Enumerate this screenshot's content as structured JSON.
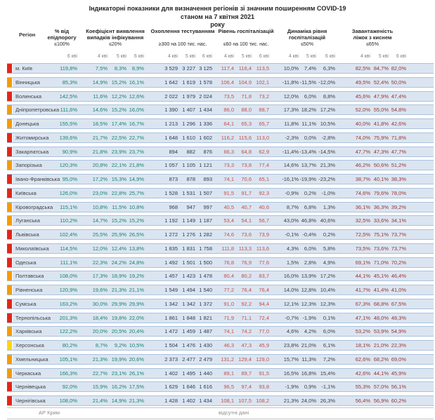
{
  "title": {
    "line1": "Індикаторні показники для визначення регіонів зі значним поширенням COVID-19",
    "line2": "станом на 7 квітня 2021",
    "line3": "року"
  },
  "columns": {
    "region_label": "Регіон",
    "groups": [
      {
        "id": "epid",
        "title_lines": [
          "% від",
          "епідпорогу"
        ],
        "limit": "≤100%"
      },
      {
        "id": "detect",
        "title_lines": [
          "Коефіцієнт виявлення",
          "випадків інфікування"
        ],
        "limit": "≤20%"
      },
      {
        "id": "testing",
        "title_lines": [
          "Охоплення тестуванням"
        ],
        "limit": "≥300 на 100 тис. нас."
      },
      {
        "id": "hosp",
        "title_lines": [
          "Рівень госпіталізацій"
        ],
        "limit": "≤60 на 100 тис. нас."
      },
      {
        "id": "dyn",
        "title_lines": [
          "Динаміка рівня",
          "госпіталізацій"
        ],
        "limit": "≤50%"
      },
      {
        "id": "beds",
        "title_lines": [
          "Завантаженість",
          "ліжок з киснем"
        ],
        "limit": "≤65%"
      }
    ]
  },
  "date_row": [
    "",
    "",
    "6 кві",
    "4 кві",
    "5 кві",
    "6 кві",
    "4 кві",
    "5 кві",
    "6 кві",
    "4 кві",
    "5 кві",
    "6 кві",
    "4 кві",
    "5 кві",
    "6 кві",
    "4 кві",
    "5 кві",
    "6 кві"
  ],
  "colors": {
    "marker_red": "#e3261a",
    "marker_orange": "#f59b00",
    "marker_yellow": "#ffd60a",
    "band_bg": "#dbe5f1",
    "band_border": "#aac2dc",
    "value_teal": "#15836c",
    "value_testing": "#2e3d52",
    "value_hosp_red": "#c0504d",
    "value_dark": "#3d3d3d",
    "value_beds_maroon": "#943634"
  },
  "rows": [
    {
      "name": "м. Київ",
      "marker": "red",
      "epid": "119,8%",
      "detect": [
        "7,5%",
        "8,3%",
        "8,9%"
      ],
      "testing": [
        "3 529",
        "3 227",
        "3 125"
      ],
      "hosp": [
        "117,4",
        "116,4",
        "113,5"
      ],
      "dyn": [
        "10,0%",
        "7,4%",
        "6,3%"
      ],
      "beds": [
        "82,5%",
        "84,7%",
        "82,0%"
      ]
    },
    {
      "name": "Вінницька",
      "marker": "orange",
      "epid": "85,3%",
      "detect": [
        "14,9%",
        "15,2%",
        "16,1%"
      ],
      "testing": [
        "1 642",
        "1 619",
        "1 578"
      ],
      "hosp": [
        "106,4",
        "104,9",
        "102,1"
      ],
      "dyn": [
        "-11,8%",
        "-11,5%",
        "-12,0%"
      ],
      "beds": [
        "49,5%",
        "52,4%",
        "50,0%"
      ]
    },
    {
      "name": "Волинська",
      "marker": "red",
      "epid": "142,5%",
      "detect": [
        "11,6%",
        "12,2%",
        "12,6%"
      ],
      "testing": [
        "2 022",
        "1 979",
        "2 024"
      ],
      "hosp": [
        "73,5",
        "71,8",
        "73,2"
      ],
      "dyn": [
        "12,0%",
        "6,0%",
        "8,8%"
      ],
      "beds": [
        "45,6%",
        "47,9%",
        "47,4%"
      ]
    },
    {
      "name": "Дніпропетровська",
      "marker": "orange",
      "epid": "111,6%",
      "detect": [
        "14,6%",
        "15,2%",
        "16,0%"
      ],
      "testing": [
        "1 390",
        "1 407",
        "1 434"
      ],
      "hosp": [
        "86,0",
        "88,0",
        "88,7"
      ],
      "dyn": [
        "17,3%",
        "18,2%",
        "17,2%"
      ],
      "beds": [
        "52,0%",
        "55,0%",
        "54,8%"
      ]
    },
    {
      "name": "Донецька",
      "marker": "orange",
      "epid": "155,5%",
      "detect": [
        "18,5%",
        "17,4%",
        "16,7%"
      ],
      "testing": [
        "1 213",
        "1 296",
        "1 336"
      ],
      "hosp": [
        "64,1",
        "65,3",
        "65,7"
      ],
      "dyn": [
        "11,8%",
        "11,1%",
        "10,5%"
      ],
      "beds": [
        "40,0%",
        "41,8%",
        "42,6%"
      ]
    },
    {
      "name": "Житомирська",
      "marker": "red",
      "epid": "139,6%",
      "detect": [
        "21,7%",
        "22,5%",
        "22,7%"
      ],
      "testing": [
        "1 648",
        "1 610",
        "1 602"
      ],
      "hosp": [
        "116,2",
        "115,6",
        "113,0"
      ],
      "dyn": [
        "-2,3%",
        "0,0%",
        "-2,8%"
      ],
      "beds": [
        "74,0%",
        "75,9%",
        "71,8%"
      ]
    },
    {
      "name": "Закарпатська",
      "marker": "red",
      "epid": "90,9%",
      "detect": [
        "21,8%",
        "23,9%",
        "23,7%"
      ],
      "testing": [
        "894",
        "882",
        "876"
      ],
      "hosp": [
        "66,3",
        "64,8",
        "62,9"
      ],
      "dyn": [
        "-11,4%",
        "-13,4%",
        "-14,5%"
      ],
      "beds": [
        "47,7%",
        "47,3%",
        "47,7%"
      ]
    },
    {
      "name": "Запорізька",
      "marker": "orange",
      "epid": "120,3%",
      "detect": [
        "20,8%",
        "22,1%",
        "21,8%"
      ],
      "testing": [
        "1 057",
        "1 105",
        "1 121"
      ],
      "hosp": [
        "73,3",
        "73,8",
        "77,4"
      ],
      "dyn": [
        "14,6%",
        "13,7%",
        "21,3%"
      ],
      "beds": [
        "46,2%",
        "50,6%",
        "51,2%"
      ]
    },
    {
      "name": "Івано-Франківська",
      "marker": "red",
      "epid": "95,0%",
      "detect": [
        "17,2%",
        "15,3%",
        "14,9%"
      ],
      "testing": [
        "873",
        "878",
        "893"
      ],
      "hosp": [
        "74,1",
        "70,6",
        "65,1"
      ],
      "dyn": [
        "-16,1%",
        "-19,9%",
        "-23,2%"
      ],
      "beds": [
        "38,7%",
        "40,1%",
        "38,3%"
      ]
    },
    {
      "name": "Київська",
      "marker": "red",
      "epid": "126,0%",
      "detect": [
        "23,0%",
        "22,8%",
        "25,7%"
      ],
      "testing": [
        "1 528",
        "1 531",
        "1 507"
      ],
      "hosp": [
        "91,5",
        "91,7",
        "92,3"
      ],
      "dyn": [
        "-0,9%",
        "0,2%",
        "-1,0%"
      ],
      "beds": [
        "74,6%",
        "79,6%",
        "78,0%"
      ]
    },
    {
      "name": "Кіровоградська",
      "marker": "orange",
      "epid": "115,1%",
      "detect": [
        "10,8%",
        "11,5%",
        "10,8%"
      ],
      "testing": [
        "968",
        "947",
        "997"
      ],
      "hosp": [
        "40,5",
        "40,7",
        "40,6"
      ],
      "dyn": [
        "8,7%",
        "6,8%",
        "1,3%"
      ],
      "beds": [
        "36,1%",
        "36,3%",
        "39,2%"
      ]
    },
    {
      "name": "Луганська",
      "marker": "orange",
      "epid": "110,2%",
      "detect": [
        "14,7%",
        "15,2%",
        "15,2%"
      ],
      "testing": [
        "1 192",
        "1 149",
        "1 187"
      ],
      "hosp": [
        "53,4",
        "54,1",
        "56,7"
      ],
      "dyn": [
        "43,0%",
        "46,8%",
        "40,6%"
      ],
      "beds": [
        "32,5%",
        "33,6%",
        "34,1%"
      ]
    },
    {
      "name": "Львівська",
      "marker": "red",
      "epid": "102,4%",
      "detect": [
        "25,5%",
        "25,9%",
        "26,5%"
      ],
      "testing": [
        "1 272",
        "1 276",
        "1 282"
      ],
      "hosp": [
        "74,6",
        "73,6",
        "73,9"
      ],
      "dyn": [
        "-0,1%",
        "-0,4%",
        "0,2%"
      ],
      "beds": [
        "72,5%",
        "75,1%",
        "73,7%"
      ]
    },
    {
      "name": "Миколаївська",
      "marker": "red",
      "epid": "114,5%",
      "detect": [
        "12,0%",
        "12,4%",
        "13,8%"
      ],
      "testing": [
        "1 835",
        "1 831",
        "1 758"
      ],
      "hosp": [
        "111,8",
        "113,3",
        "113,6"
      ],
      "dyn": [
        "4,3%",
        "6,0%",
        "5,8%"
      ],
      "beds": [
        "73,5%",
        "73,6%",
        "73,7%"
      ]
    },
    {
      "name": "Одеська",
      "marker": "red",
      "epid": "111,1%",
      "detect": [
        "22,3%",
        "24,2%",
        "24,8%"
      ],
      "testing": [
        "1 492",
        "1 501",
        "1 500"
      ],
      "hosp": [
        "76,8",
        "76,9",
        "77,6"
      ],
      "dyn": [
        "1,5%",
        "2,8%",
        "4,9%"
      ],
      "beds": [
        "69,1%",
        "71,0%",
        "70,2%"
      ]
    },
    {
      "name": "Полтавська",
      "marker": "orange",
      "epid": "108,0%",
      "detect": [
        "17,3%",
        "18,9%",
        "19,2%"
      ],
      "testing": [
        "1 457",
        "1 423",
        "1 478"
      ],
      "hosp": [
        "80,4",
        "80,2",
        "83,7"
      ],
      "dyn": [
        "16,0%",
        "13,9%",
        "17,2%"
      ],
      "beds": [
        "44,1%",
        "45,1%",
        "46,4%"
      ]
    },
    {
      "name": "Рівненська",
      "marker": "orange",
      "epid": "120,9%",
      "detect": [
        "19,6%",
        "21,3%",
        "21,1%"
      ],
      "testing": [
        "1 549",
        "1 494",
        "1 540"
      ],
      "hosp": [
        "77,2",
        "76,4",
        "76,4"
      ],
      "dyn": [
        "14,0%",
        "12,8%",
        "10,4%"
      ],
      "beds": [
        "41,7%",
        "41,4%",
        "41,0%"
      ]
    },
    {
      "name": "Сумська",
      "marker": "red",
      "epid": "163,2%",
      "detect": [
        "30,0%",
        "29,9%",
        "29,9%"
      ],
      "testing": [
        "1 342",
        "1 342",
        "1 372"
      ],
      "hosp": [
        "91,0",
        "92,2",
        "94,4"
      ],
      "dyn": [
        "12,1%",
        "12,3%",
        "12,3%"
      ],
      "beds": [
        "67,3%",
        "68,8%",
        "67,5%"
      ]
    },
    {
      "name": "Тернопільська",
      "marker": "red",
      "epid": "201,3%",
      "detect": [
        "18,4%",
        "19,8%",
        "22,0%"
      ],
      "testing": [
        "1 861",
        "1 848",
        "1 821"
      ],
      "hosp": [
        "71,9",
        "71,1",
        "72,4"
      ],
      "dyn": [
        "-0,7%",
        "-1,9%",
        "0,1%"
      ],
      "beds": [
        "47,1%",
        "48,0%",
        "48,3%"
      ]
    },
    {
      "name": "Харківська",
      "marker": "orange",
      "epid": "122,2%",
      "detect": [
        "20,0%",
        "20,5%",
        "20,4%"
      ],
      "testing": [
        "1 472",
        "1 459",
        "1 487"
      ],
      "hosp": [
        "74,1",
        "74,2",
        "77,0"
      ],
      "dyn": [
        "4,6%",
        "4,2%",
        "6,0%"
      ],
      "beds": [
        "53,2%",
        "53,9%",
        "54,9%"
      ]
    },
    {
      "name": "Херсонська",
      "marker": "yellow",
      "epid": "80,2%",
      "detect": [
        "8,7%",
        "9,2%",
        "10,5%"
      ],
      "testing": [
        "1 504",
        "1 476",
        "1 430"
      ],
      "hosp": [
        "46,3",
        "47,3",
        "45,9"
      ],
      "dyn": [
        "23,8%",
        "21,0%",
        "6,1%"
      ],
      "beds": [
        "18,1%",
        "21,0%",
        "22,3%"
      ]
    },
    {
      "name": "Хмельницька",
      "marker": "orange",
      "epid": "105,1%",
      "detect": [
        "21,3%",
        "19,9%",
        "20,6%"
      ],
      "testing": [
        "2 373",
        "2 477",
        "2 479"
      ],
      "hosp": [
        "131,2",
        "129,4",
        "129,0"
      ],
      "dyn": [
        "15,7%",
        "11,3%",
        "7,2%"
      ],
      "beds": [
        "62,6%",
        "68,2%",
        "69,0%"
      ]
    },
    {
      "name": "Черкаська",
      "marker": "orange",
      "epid": "166,3%",
      "detect": [
        "22,7%",
        "23,1%",
        "26,1%"
      ],
      "testing": [
        "1 402",
        "1 495",
        "1 440"
      ],
      "hosp": [
        "89,1",
        "89,7",
        "91,5"
      ],
      "dyn": [
        "16,5%",
        "16,8%",
        "15,4%"
      ],
      "beds": [
        "42,6%",
        "44,1%",
        "45,9%"
      ]
    },
    {
      "name": "Чернівецька",
      "marker": "red",
      "epid": "92,0%",
      "detect": [
        "15,9%",
        "16,2%",
        "17,5%"
      ],
      "testing": [
        "1 629",
        "1 646",
        "1 616"
      ],
      "hosp": [
        "96,5",
        "97,4",
        "93,8"
      ],
      "dyn": [
        "-1,9%",
        "0,9%",
        "-1,1%"
      ],
      "beds": [
        "55,3%",
        "57,0%",
        "56,1%"
      ]
    },
    {
      "name": "Чернігівська",
      "marker": "red",
      "epid": "108,0%",
      "detect": [
        "21,4%",
        "14,9%",
        "21,3%"
      ],
      "testing": [
        "1 428",
        "1 402",
        "1 434"
      ],
      "hosp": [
        "108,1",
        "107,5",
        "108,2"
      ],
      "dyn": [
        "21,3%",
        "24,0%",
        "26,3%"
      ],
      "beds": [
        "56,4%",
        "56,9%",
        "60,2%"
      ]
    }
  ],
  "footer": {
    "region": "АР Крим",
    "note": "відсутні дані"
  }
}
